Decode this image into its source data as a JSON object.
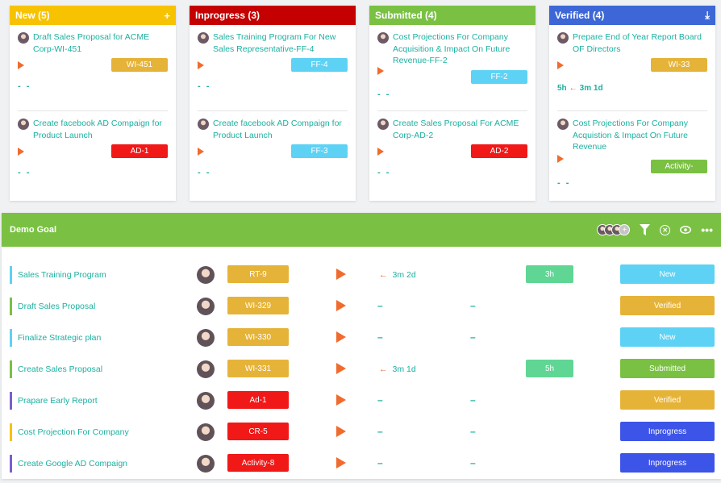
{
  "colors": {
    "new": "#f7c200",
    "inprogress": "#c40000",
    "submitted": "#7ac143",
    "verified": "#3d67d6",
    "tag_yellow": "#e6b339",
    "tag_red": "#f11818",
    "tag_cyan": "#5dd2f4",
    "tag_green": "#7ac143",
    "status_blue": "#3d54e8",
    "status_cyan": "#5dd2f4",
    "status_green": "#7ac143",
    "status_yellow": "#e6b339"
  },
  "board": {
    "columns": [
      {
        "title": "New (5)",
        "icon": "plus-icon",
        "icon_glyph": "+",
        "color": "#f7c200",
        "cards": [
          {
            "title": "Draft Sales Proposal for ACME Corp-WI-451",
            "tag": "WI-451",
            "tag_color": "#e6b339",
            "footer": "- -"
          },
          {
            "title": "Create facebook AD Compaign for Product Launch",
            "tag": "AD-1",
            "tag_color": "#f11818",
            "footer": "- -"
          }
        ]
      },
      {
        "title": "Inprogress (3)",
        "icon": "",
        "icon_glyph": "",
        "color": "#c40000",
        "cards": [
          {
            "title": "Sales Training Program For New Sales Representative-FF-4",
            "tag": "FF-4",
            "tag_color": "#5dd2f4",
            "footer": "- -"
          },
          {
            "title": "Create facebook AD Compaign for Product Launch",
            "tag": "FF-3",
            "tag_color": "#5dd2f4",
            "footer": "- -"
          }
        ]
      },
      {
        "title": "Submitted (4)",
        "icon": "",
        "icon_glyph": "",
        "color": "#7ac143",
        "cards": [
          {
            "title": "Cost Projections For Company Acquisition & Impact On Future Revenue-FF-2",
            "tag": "FF-2",
            "tag_color": "#5dd2f4",
            "footer": "- -"
          },
          {
            "title": "Create Sales Proposal For ACME Corp-AD-2",
            "tag": "AD-2",
            "tag_color": "#f11818",
            "footer": "- -"
          }
        ]
      },
      {
        "title": "Verified (4)",
        "icon": "download-icon",
        "icon_glyph": "⤓",
        "color": "#3d67d6",
        "cards": [
          {
            "title": "Prepare End of Year Report Board OF Directors",
            "tag": "WI-33",
            "tag_color": "#e6b339",
            "time_spent": "5h",
            "time_est": "3m 1d"
          },
          {
            "title": "Cost Projections For Company Acquistion & Impact On Future Revenue",
            "tag": "Activity-",
            "tag_color": "#7ac143",
            "footer": "- -"
          }
        ]
      }
    ]
  },
  "goal": {
    "title": "Demo Goal",
    "rows": [
      {
        "title": "Sales Training Program",
        "bar_color": "#5dd2f4",
        "tag": "RT-9",
        "tag_color": "#e6b339",
        "estimate": "3m 2d",
        "spent": "3h",
        "status": "New",
        "status_color": "#5dd2f4"
      },
      {
        "title": "Draft Sales Proposal",
        "bar_color": "#7ac143",
        "tag": "WI-329",
        "tag_color": "#e6b339",
        "estimate": "",
        "spent": "",
        "status": "Verified",
        "status_color": "#e6b339"
      },
      {
        "title": "Finalize Strategic plan",
        "bar_color": "#5dd2f4",
        "tag": "WI-330",
        "tag_color": "#e6b339",
        "estimate": "",
        "spent": "",
        "status": "New",
        "status_color": "#5dd2f4"
      },
      {
        "title": "Create Sales Proposal",
        "bar_color": "#7ac143",
        "tag": "WI-331",
        "tag_color": "#e6b339",
        "estimate": "3m 1d",
        "spent": "5h",
        "status": "Submitted",
        "status_color": "#7ac143"
      },
      {
        "title": "Prapare Early Report",
        "bar_color": "#7a5fd0",
        "tag": "Ad-1",
        "tag_color": "#f11818",
        "estimate": "",
        "spent": "",
        "status": "Verified",
        "status_color": "#e6b339"
      },
      {
        "title": "Cost Projection For Company",
        "bar_color": "#f7c200",
        "tag": "CR-5",
        "tag_color": "#f11818",
        "estimate": "",
        "spent": "",
        "status": "Inprogress",
        "status_color": "#3d54e8"
      },
      {
        "title": "Create Google AD Compaign",
        "bar_color": "#7a5fd0",
        "tag": "Activity-8",
        "tag_color": "#f11818",
        "estimate": "",
        "spent": "",
        "status": "Inprogress",
        "status_color": "#3d54e8"
      }
    ]
  }
}
